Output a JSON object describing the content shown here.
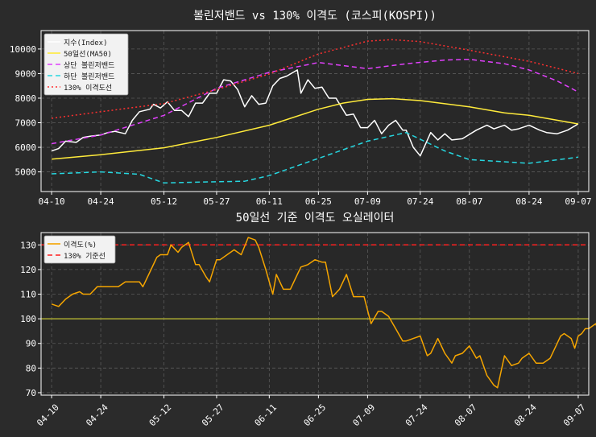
{
  "chart_data": [
    {
      "type": "line",
      "title": "볼린저밴드 vs 130% 이격도 (코스피(KOSPI))",
      "xlabel": "",
      "ylabel": "",
      "x_tick_labels": [
        "04-10",
        "04-24",
        "05-12",
        "05-27",
        "06-11",
        "06-25",
        "07-09",
        "07-24",
        "08-07",
        "08-24",
        "09-07"
      ],
      "x_tick_dates": [
        "2023-04-10",
        "2023-04-24",
        "2023-05-12",
        "2023-05-27",
        "2023-06-11",
        "2023-06-25",
        "2023-07-09",
        "2023-07-24",
        "2023-08-07",
        "2023-08-24",
        "2023-09-07"
      ],
      "x_range": [
        "2023-04-07",
        "2023-09-10"
      ],
      "ylim": [
        4200,
        10750
      ],
      "y_ticks": [
        5000,
        6000,
        7000,
        8000,
        9000,
        10000
      ],
      "grid": true,
      "legend_position": "top-left",
      "series": [
        {
          "name": "지수(Index)",
          "color": "#ffffff",
          "style": "solid",
          "points": [
            [
              "2023-04-10",
              5850
            ],
            [
              "2023-04-12",
              5950
            ],
            [
              "2023-04-14",
              6250
            ],
            [
              "2023-04-17",
              6200
            ],
            [
              "2023-04-19",
              6400
            ],
            [
              "2023-04-21",
              6450
            ],
            [
              "2023-04-24",
              6500
            ],
            [
              "2023-04-26",
              6600
            ],
            [
              "2023-04-28",
              6650
            ],
            [
              "2023-05-01",
              6550
            ],
            [
              "2023-05-03",
              7100
            ],
            [
              "2023-05-05",
              7450
            ],
            [
              "2023-05-08",
              7550
            ],
            [
              "2023-05-09",
              7750
            ],
            [
              "2023-05-11",
              7600
            ],
            [
              "2023-05-13",
              7850
            ],
            [
              "2023-05-15",
              7500
            ],
            [
              "2023-05-17",
              7500
            ],
            [
              "2023-05-19",
              7250
            ],
            [
              "2023-05-21",
              7800
            ],
            [
              "2023-05-23",
              7800
            ],
            [
              "2023-05-25",
              8200
            ],
            [
              "2023-05-27",
              8200
            ],
            [
              "2023-05-29",
              8750
            ],
            [
              "2023-05-31",
              8700
            ],
            [
              "2023-06-02",
              8350
            ],
            [
              "2023-06-04",
              7650
            ],
            [
              "2023-06-06",
              8100
            ],
            [
              "2023-06-08",
              7750
            ],
            [
              "2023-06-10",
              7800
            ],
            [
              "2023-06-12",
              8500
            ],
            [
              "2023-06-14",
              8800
            ],
            [
              "2023-06-16",
              8900
            ],
            [
              "2023-06-19",
              9150
            ],
            [
              "2023-06-20",
              8200
            ],
            [
              "2023-06-22",
              8750
            ],
            [
              "2023-06-24",
              8400
            ],
            [
              "2023-06-26",
              8450
            ],
            [
              "2023-06-28",
              8000
            ],
            [
              "2023-06-30",
              8000
            ],
            [
              "2023-07-03",
              7300
            ],
            [
              "2023-07-05",
              7350
            ],
            [
              "2023-07-07",
              6800
            ],
            [
              "2023-07-09",
              6800
            ],
            [
              "2023-07-11",
              7100
            ],
            [
              "2023-07-13",
              6550
            ],
            [
              "2023-07-15",
              6900
            ],
            [
              "2023-07-17",
              7100
            ],
            [
              "2023-07-19",
              6700
            ],
            [
              "2023-07-20",
              6700
            ],
            [
              "2023-07-22",
              6000
            ],
            [
              "2023-07-24",
              5650
            ],
            [
              "2023-07-27",
              6600
            ],
            [
              "2023-07-29",
              6300
            ],
            [
              "2023-07-31",
              6550
            ],
            [
              "2023-08-02",
              6300
            ],
            [
              "2023-08-05",
              6350
            ],
            [
              "2023-08-09",
              6700
            ],
            [
              "2023-08-12",
              6900
            ],
            [
              "2023-08-14",
              6750
            ],
            [
              "2023-08-17",
              6900
            ],
            [
              "2023-08-19",
              6700
            ],
            [
              "2023-08-21",
              6750
            ],
            [
              "2023-08-24",
              6900
            ],
            [
              "2023-08-27",
              6700
            ],
            [
              "2023-08-29",
              6600
            ],
            [
              "2023-09-01",
              6550
            ],
            [
              "2023-09-04",
              6700
            ],
            [
              "2023-09-07",
              6950
            ]
          ]
        },
        {
          "name": "50일선(MA50)",
          "color": "#ffeb3b",
          "style": "solid",
          "points": [
            [
              "2023-04-10",
              5520
            ],
            [
              "2023-04-24",
              5700
            ],
            [
              "2023-05-12",
              5980
            ],
            [
              "2023-05-27",
              6400
            ],
            [
              "2023-06-11",
              6900
            ],
            [
              "2023-06-25",
              7550
            ],
            [
              "2023-07-02",
              7800
            ],
            [
              "2023-07-09",
              7950
            ],
            [
              "2023-07-16",
              7980
            ],
            [
              "2023-07-24",
              7900
            ],
            [
              "2023-08-07",
              7650
            ],
            [
              "2023-08-17",
              7400
            ],
            [
              "2023-08-24",
              7300
            ],
            [
              "2023-09-07",
              6950
            ]
          ]
        },
        {
          "name": "상단 볼린저밴드",
          "color": "#e040fb",
          "style": "dashed",
          "points": [
            [
              "2023-04-10",
              6150
            ],
            [
              "2023-04-24",
              6500
            ],
            [
              "2023-05-12",
              7300
            ],
            [
              "2023-05-27",
              8400
            ],
            [
              "2023-06-11",
              9050
            ],
            [
              "2023-06-25",
              9450
            ],
            [
              "2023-07-09",
              9200
            ],
            [
              "2023-07-20",
              9400
            ],
            [
              "2023-07-31",
              9550
            ],
            [
              "2023-08-07",
              9580
            ],
            [
              "2023-08-17",
              9400
            ],
            [
              "2023-08-24",
              9150
            ],
            [
              "2023-09-01",
              8700
            ],
            [
              "2023-09-07",
              8250
            ]
          ]
        },
        {
          "name": "하단 볼린저밴드",
          "color": "#26d7e0",
          "style": "dashed",
          "points": [
            [
              "2023-04-10",
              4920
            ],
            [
              "2023-04-24",
              5000
            ],
            [
              "2023-05-05",
              4900
            ],
            [
              "2023-05-12",
              4550
            ],
            [
              "2023-05-27",
              4600
            ],
            [
              "2023-06-04",
              4620
            ],
            [
              "2023-06-11",
              4850
            ],
            [
              "2023-06-25",
              5550
            ],
            [
              "2023-07-09",
              6250
            ],
            [
              "2023-07-20",
              6600
            ],
            [
              "2023-07-31",
              5850
            ],
            [
              "2023-08-07",
              5500
            ],
            [
              "2023-08-24",
              5350
            ],
            [
              "2023-09-07",
              5600
            ]
          ]
        },
        {
          "name": "130% 이격도선",
          "color": "#ff3030",
          "style": "dotted",
          "points": [
            [
              "2023-04-10",
              7180
            ],
            [
              "2023-04-24",
              7450
            ],
            [
              "2023-05-12",
              7780
            ],
            [
              "2023-05-27",
              8350
            ],
            [
              "2023-06-11",
              8980
            ],
            [
              "2023-06-25",
              9800
            ],
            [
              "2023-07-09",
              10320
            ],
            [
              "2023-07-16",
              10380
            ],
            [
              "2023-07-24",
              10300
            ],
            [
              "2023-08-07",
              9950
            ],
            [
              "2023-08-24",
              9500
            ],
            [
              "2023-09-07",
              9000
            ]
          ]
        }
      ]
    },
    {
      "type": "line",
      "title": "50일선 기준 이격도 오실레이터",
      "xlabel": "",
      "ylabel": "",
      "x_tick_labels": [
        "04-10",
        "04-24",
        "05-12",
        "05-27",
        "06-11",
        "06-25",
        "07-09",
        "07-24",
        "08-07",
        "08-24",
        "09-07"
      ],
      "x_tick_dates": [
        "2023-04-10",
        "2023-04-24",
        "2023-05-12",
        "2023-05-27",
        "2023-06-11",
        "2023-06-25",
        "2023-07-09",
        "2023-07-24",
        "2023-08-07",
        "2023-08-24",
        "2023-09-07"
      ],
      "x_range": [
        "2023-04-07",
        "2023-09-10"
      ],
      "ylim": [
        69,
        135
      ],
      "y_ticks": [
        70,
        80,
        90,
        100,
        110,
        120,
        130
      ],
      "grid": true,
      "legend_position": "top-left",
      "reference_lines": [
        {
          "name": "130% 기준선",
          "value": 130,
          "color": "#ff2020",
          "style": "dashed"
        },
        {
          "value": 100,
          "color": "#a8a832",
          "style": "solid"
        }
      ],
      "series": [
        {
          "name": "이격도(%)",
          "color": "#f5a500",
          "style": "solid",
          "points": [
            [
              "2023-04-10",
              106
            ],
            [
              "2023-04-12",
              105
            ],
            [
              "2023-04-14",
              108
            ],
            [
              "2023-04-16",
              110
            ],
            [
              "2023-04-18",
              111
            ],
            [
              "2023-04-19",
              110
            ],
            [
              "2023-04-21",
              110
            ],
            [
              "2023-04-23",
              113
            ],
            [
              "2023-04-25",
              113
            ],
            [
              "2023-04-27",
              113
            ],
            [
              "2023-04-29",
              113
            ],
            [
              "2023-05-01",
              115
            ],
            [
              "2023-05-03",
              115
            ],
            [
              "2023-05-05",
              115
            ],
            [
              "2023-05-06",
              113
            ],
            [
              "2023-05-08",
              119
            ],
            [
              "2023-05-10",
              125
            ],
            [
              "2023-05-11",
              126
            ],
            [
              "2023-05-13",
              126
            ],
            [
              "2023-05-14",
              130
            ],
            [
              "2023-05-16",
              127
            ],
            [
              "2023-05-17",
              129
            ],
            [
              "2023-05-19",
              131
            ],
            [
              "2023-05-21",
              122
            ],
            [
              "2023-05-22",
              122
            ],
            [
              "2023-05-24",
              117
            ],
            [
              "2023-05-25",
              115
            ],
            [
              "2023-05-27",
              124
            ],
            [
              "2023-05-28",
              124
            ],
            [
              "2023-05-30",
              126
            ],
            [
              "2023-06-01",
              128
            ],
            [
              "2023-06-03",
              126
            ],
            [
              "2023-06-05",
              133
            ],
            [
              "2023-06-07",
              132
            ],
            [
              "2023-06-08",
              129
            ],
            [
              "2023-06-10",
              120
            ],
            [
              "2023-06-12",
              110
            ],
            [
              "2023-06-13",
              118
            ],
            [
              "2023-06-15",
              112
            ],
            [
              "2023-06-17",
              112
            ],
            [
              "2023-06-19",
              118
            ],
            [
              "2023-06-20",
              121
            ],
            [
              "2023-06-22",
              122
            ],
            [
              "2023-06-24",
              124
            ],
            [
              "2023-06-26",
              123
            ],
            [
              "2023-06-27",
              123
            ],
            [
              "2023-06-29",
              109
            ],
            [
              "2023-07-01",
              112
            ],
            [
              "2023-07-03",
              118
            ],
            [
              "2023-07-05",
              109
            ],
            [
              "2023-07-06",
              109
            ],
            [
              "2023-07-08",
              109
            ],
            [
              "2023-07-10",
              98
            ],
            [
              "2023-07-12",
              103
            ],
            [
              "2023-07-13",
              103
            ],
            [
              "2023-07-15",
              101
            ],
            [
              "2023-07-17",
              96
            ],
            [
              "2023-07-19",
              91
            ],
            [
              "2023-07-20",
              91
            ],
            [
              "2023-07-22",
              92
            ],
            [
              "2023-07-24",
              93
            ],
            [
              "2023-07-26",
              85
            ],
            [
              "2023-07-27",
              86
            ],
            [
              "2023-07-29",
              92
            ],
            [
              "2023-07-31",
              86
            ],
            [
              "2023-08-02",
              82
            ],
            [
              "2023-08-03",
              85
            ],
            [
              "2023-08-05",
              86
            ],
            [
              "2023-08-07",
              89
            ],
            [
              "2023-08-09",
              84
            ],
            [
              "2023-08-10",
              85
            ],
            [
              "2023-08-12",
              77
            ],
            [
              "2023-08-14",
              73
            ],
            [
              "2023-08-15",
              72
            ],
            [
              "2023-08-17",
              85
            ],
            [
              "2023-08-19",
              81
            ],
            [
              "2023-08-21",
              82
            ],
            [
              "2023-08-22",
              84
            ],
            [
              "2023-08-24",
              86
            ],
            [
              "2023-08-26",
              82
            ],
            [
              "2023-08-28",
              82
            ],
            [
              "2023-08-30",
              84
            ],
            [
              "2023-09-01",
              90
            ],
            [
              "2023-09-02",
              93
            ],
            [
              "2023-09-03",
              94
            ],
            [
              "2023-09-05",
              92
            ],
            [
              "2023-09-06",
              88
            ],
            [
              "2023-09-07",
              93
            ],
            [
              "2023-09-08",
              94
            ],
            [
              "2023-09-09",
              96
            ],
            [
              "2023-09-10",
              96
            ],
            [
              "2023-09-11",
              97
            ],
            [
              "2023-09-12",
              98
            ],
            [
              "2023-09-13",
              94
            ],
            [
              "2023-09-14",
              100
            ]
          ]
        }
      ]
    }
  ]
}
